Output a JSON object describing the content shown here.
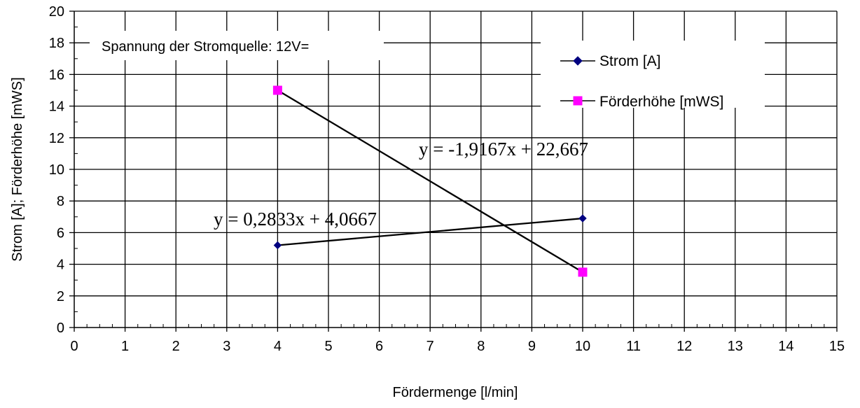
{
  "chart_data": {
    "type": "scatter",
    "xlabel": "Fördermenge [l/min]",
    "ylabel": "Strom [A]; Förderhöhe [mWS]",
    "xlim": [
      0,
      15
    ],
    "ylim": [
      0,
      20
    ],
    "x_ticks": [
      "0",
      "1",
      "2",
      "3",
      "4",
      "5",
      "6",
      "7",
      "8",
      "9",
      "10",
      "11",
      "12",
      "13",
      "14",
      "15"
    ],
    "y_ticks": [
      "0",
      "2",
      "4",
      "6",
      "8",
      "10",
      "12",
      "14",
      "16",
      "18",
      "20"
    ],
    "grid": true,
    "legend_position": "top-right",
    "annotation": "Spannung der Stromquelle: 12V=",
    "series": [
      {
        "name": "Strom [A]",
        "color": "#000080",
        "marker": "diamond",
        "points": [
          [
            4,
            5.2
          ],
          [
            10,
            6.9
          ]
        ],
        "trendline": {
          "slope": 0.2833,
          "intercept": 4.0667,
          "label": "y = 0,2833x + 4,0667"
        }
      },
      {
        "name": "Förderhöhe [mWS]",
        "color": "#ff00ff",
        "marker": "square",
        "points": [
          [
            4,
            15.0
          ],
          [
            10,
            3.5
          ]
        ],
        "trendline": {
          "slope": -1.9167,
          "intercept": 22.667,
          "label": "y = -1,9167x + 22,667"
        }
      }
    ]
  }
}
